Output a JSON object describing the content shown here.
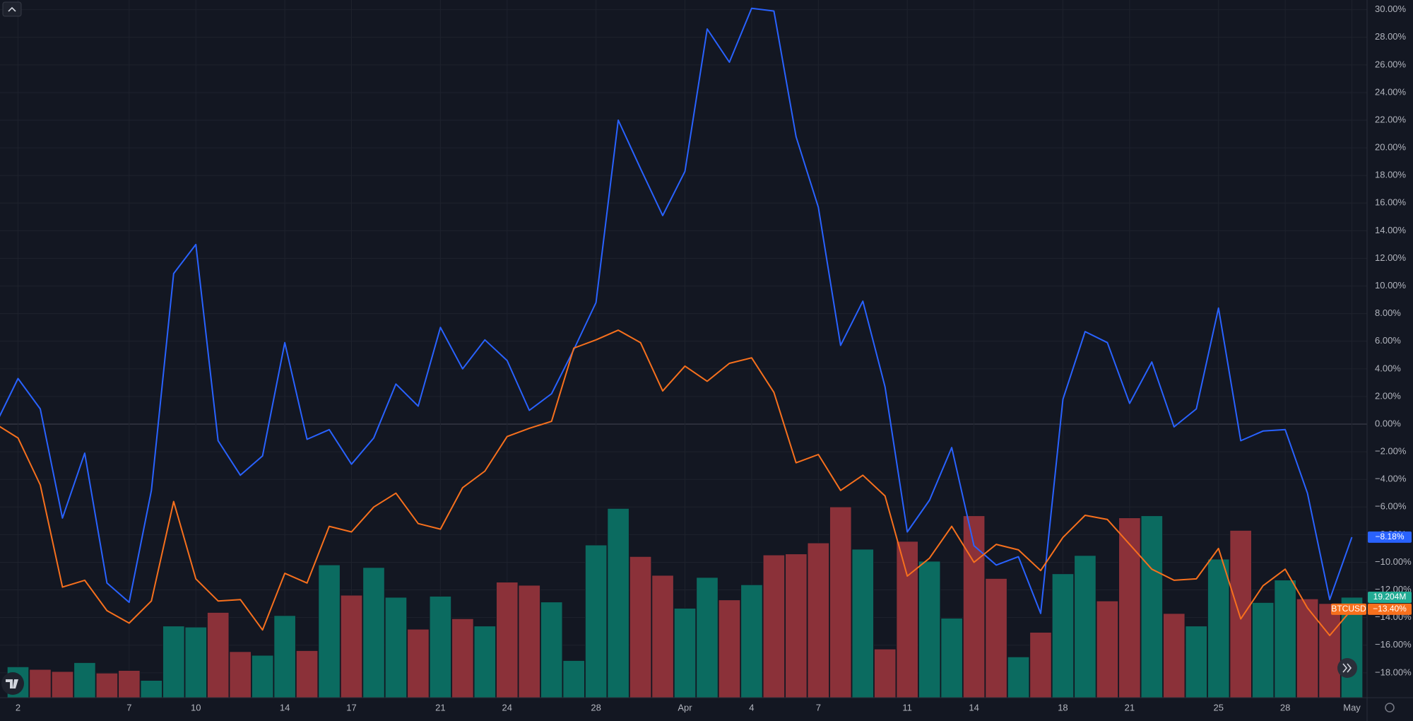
{
  "chart_data": {
    "type": "line",
    "categories": [
      null,
      "2",
      null,
      null,
      null,
      null,
      "7",
      null,
      null,
      "10",
      null,
      null,
      null,
      "14",
      null,
      null,
      "17",
      null,
      null,
      null,
      "21",
      null,
      null,
      "24",
      null,
      null,
      null,
      "28",
      null,
      null,
      null,
      "Apr",
      null,
      null,
      "4",
      null,
      null,
      "7",
      null,
      null,
      null,
      "11",
      null,
      null,
      "14",
      null,
      null,
      null,
      "18",
      null,
      null,
      "21",
      null,
      null,
      null,
      "25",
      null,
      null,
      "28",
      null,
      null,
      "May"
    ],
    "series": [
      {
        "type": "line",
        "color": "#2962ff",
        "values": [
          0,
          3.3,
          1.1,
          -6.8,
          -2.1,
          -11.5,
          -12.9,
          -4.8,
          10.9,
          13.0,
          -1.2,
          -3.7,
          -2.3,
          5.9,
          -1.1,
          -0.4,
          -2.9,
          -1.0,
          2.9,
          1.3,
          7.0,
          4.0,
          6.1,
          4.6,
          1.0,
          2.2,
          5.4,
          8.8,
          22.0,
          18.5,
          15.1,
          18.3,
          28.6,
          26.2,
          30.1,
          29.9,
          20.8,
          15.7,
          5.7,
          8.9,
          2.7,
          -7.8,
          -5.5,
          -1.7,
          -8.8,
          -10.2,
          -9.6,
          -13.7,
          1.8,
          6.7,
          5.9,
          1.5,
          4.5,
          -0.2,
          1.1,
          8.4,
          -1.2,
          -0.5,
          -0.4,
          -5.0,
          -12.7,
          -8.18
        ],
        "value_labels": [
          null,
          null,
          null,
          null,
          null,
          null,
          null,
          null,
          null,
          null,
          null,
          null,
          null,
          null,
          null,
          null,
          null,
          null,
          null,
          null,
          null,
          null,
          null,
          null,
          null,
          null,
          null,
          null,
          null,
          null,
          null,
          null,
          null,
          null,
          null,
          null,
          null,
          null,
          null,
          null,
          null,
          null,
          null,
          null,
          null,
          null,
          null,
          null,
          null,
          null,
          null,
          null,
          null,
          null,
          null,
          null,
          null,
          null,
          null,
          null,
          null,
          "−8.18%"
        ]
      },
      {
        "type": "line",
        "name": "BTCUSD",
        "color": "#f7701d",
        "values": [
          0,
          -1.0,
          -4.4,
          -11.8,
          -11.3,
          -13.5,
          -14.4,
          -12.8,
          -5.6,
          -11.2,
          -12.8,
          -12.7,
          -14.9,
          -10.8,
          -11.5,
          -7.4,
          -7.8,
          -6.0,
          -5.0,
          -7.2,
          -7.6,
          -4.6,
          -3.4,
          -0.9,
          -0.3,
          0.2,
          5.5,
          6.1,
          6.8,
          5.9,
          2.4,
          4.2,
          3.1,
          4.4,
          4.8,
          2.3,
          -2.8,
          -2.2,
          -4.8,
          -3.7,
          -5.2,
          -11.0,
          -9.7,
          -7.4,
          -10.0,
          -8.7,
          -9.1,
          -10.6,
          -8.2,
          -6.6,
          -6.9,
          -8.7,
          -10.5,
          -11.3,
          -11.2,
          -9.0,
          -14.1,
          -11.7,
          -10.5,
          -13.3,
          -15.3,
          -13.4
        ],
        "value_labels": [
          null,
          null,
          null,
          null,
          null,
          null,
          null,
          null,
          null,
          null,
          null,
          null,
          null,
          null,
          null,
          null,
          null,
          null,
          null,
          null,
          null,
          null,
          null,
          null,
          null,
          null,
          null,
          null,
          null,
          null,
          null,
          null,
          null,
          null,
          null,
          null,
          null,
          null,
          null,
          null,
          null,
          null,
          null,
          null,
          null,
          null,
          null,
          null,
          null,
          null,
          null,
          null,
          null,
          null,
          null,
          null,
          null,
          null,
          null,
          null,
          null,
          "−13.40%"
        ]
      },
      {
        "type": "bar",
        "axis": "y2",
        "values": [
          null,
          5.9,
          5.4,
          5.0,
          6.7,
          4.7,
          5.2,
          3.3,
          13.7,
          13.5,
          16.3,
          8.8,
          8.1,
          15.7,
          9.0,
          25.4,
          19.6,
          24.9,
          19.2,
          13.1,
          19.4,
          15.1,
          13.7,
          22.1,
          21.5,
          18.3,
          7.1,
          29.2,
          36.2,
          27.0,
          23.4,
          17.1,
          23.0,
          18.7,
          21.6,
          27.3,
          27.5,
          29.6,
          36.5,
          28.4,
          9.3,
          29.9,
          26.1,
          15.2,
          34.8,
          22.8,
          7.8,
          12.5,
          23.7,
          27.2,
          18.5,
          34.4,
          34.8,
          16.1,
          13.7,
          26.5,
          32.0,
          18.2,
          22.5,
          18.9,
          18.0,
          19.204
        ],
        "colors": [
          null,
          "#0b6b60",
          "#8b3139",
          "#8b3139",
          "#0b6b60",
          "#8b3139",
          "#8b3139",
          "#0b6b60",
          "#0b6b60",
          "#0b6b60",
          "#8b3139",
          "#8b3139",
          "#0b6b60",
          "#0b6b60",
          "#8b3139",
          "#0b6b60",
          "#8b3139",
          "#0b6b60",
          "#0b6b60",
          "#8b3139",
          "#0b6b60",
          "#8b3139",
          "#0b6b60",
          "#8b3139",
          "#8b3139",
          "#0b6b60",
          "#0b6b60",
          "#0b6b60",
          "#0b6b60",
          "#8b3139",
          "#8b3139",
          "#0b6b60",
          "#0b6b60",
          "#8b3139",
          "#0b6b60",
          "#8b3139",
          "#8b3139",
          "#8b3139",
          "#8b3139",
          "#0b6b60",
          "#8b3139",
          "#8b3139",
          "#0b6b60",
          "#0b6b60",
          "#8b3139",
          "#8b3139",
          "#0b6b60",
          "#8b3139",
          "#0b6b60",
          "#0b6b60",
          "#8b3139",
          "#8b3139",
          "#0b6b60",
          "#8b3139",
          "#0b6b60",
          "#0b6b60",
          "#8b3139",
          "#0b6b60",
          "#0b6b60",
          "#8b3139",
          "#8b3139",
          "#0b6b60"
        ],
        "value_labels": [
          null,
          null,
          null,
          null,
          null,
          null,
          null,
          null,
          null,
          null,
          null,
          null,
          null,
          null,
          null,
          null,
          null,
          null,
          null,
          null,
          null,
          null,
          null,
          null,
          null,
          null,
          null,
          null,
          null,
          null,
          null,
          null,
          null,
          null,
          null,
          null,
          null,
          null,
          null,
          null,
          null,
          null,
          null,
          null,
          null,
          null,
          null,
          null,
          null,
          null,
          null,
          null,
          null,
          null,
          null,
          null,
          null,
          null,
          null,
          null,
          null,
          "19.204M"
        ]
      }
    ],
    "ylim": [
      -19.8,
      30.7
    ],
    "yticks": [
      {
        "value": -18,
        "label": "−18.00%"
      },
      {
        "value": -16,
        "label": "−16.00%"
      },
      {
        "value": -14,
        "label": "−14.00%"
      },
      {
        "value": -12,
        "label": "−12.00%"
      },
      {
        "value": -10,
        "label": "−10.00%"
      },
      {
        "value": -8,
        "label": "−8.00%"
      },
      {
        "value": -6,
        "label": "−6.00%"
      },
      {
        "value": -4,
        "label": "−4.00%"
      },
      {
        "value": -2,
        "label": "−2.00%"
      },
      {
        "value": 0,
        "label": "0.00%"
      },
      {
        "value": 2,
        "label": "2.00%"
      },
      {
        "value": 4,
        "label": "4.00%"
      },
      {
        "value": 6,
        "label": "6.00%"
      },
      {
        "value": 8,
        "label": "8.00%"
      },
      {
        "value": 10,
        "label": "10.00%"
      },
      {
        "value": 12,
        "label": "12.00%"
      },
      {
        "value": 14,
        "label": "14.00%"
      },
      {
        "value": 16,
        "label": "16.00%"
      },
      {
        "value": 18,
        "label": "18.00%"
      },
      {
        "value": 20,
        "label": "20.00%"
      },
      {
        "value": 22,
        "label": "22.00%"
      },
      {
        "value": 24,
        "label": "24.00%"
      },
      {
        "value": 26,
        "label": "26.00%"
      },
      {
        "value": 28,
        "label": "28.00%"
      },
      {
        "value": 30,
        "label": "30.00%"
      }
    ],
    "y2lim": [
      0,
      60
    ],
    "grid": true
  }
}
